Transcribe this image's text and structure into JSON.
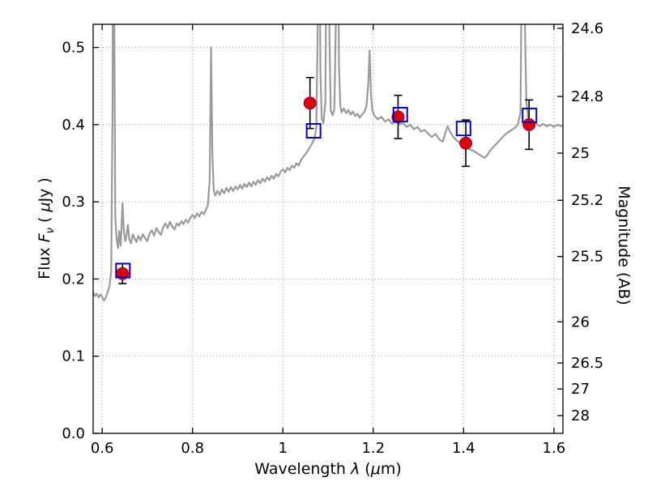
{
  "figure": {
    "background": "#ffffff",
    "frame_color": "#000000",
    "grid_color": "#9a9a9a"
  },
  "chart_data": {
    "type": "line",
    "title": "",
    "xlabel": "Wavelength λ (μm)",
    "ylabel_left": "Flux Fν ( μJy )",
    "ylabel_right": "Magnitude (AB)",
    "xlabel_parts": {
      "text1": "Wavelength  ",
      "sym1": "λ",
      "text2": " (",
      "sym2": "μ",
      "text3": "m)"
    },
    "ylabel_left_parts": {
      "text1": "Flux  ",
      "sym1": "F",
      "sub1": "ν",
      "text2": " ( ",
      "sym2": "μ",
      "text3": "Jy )"
    },
    "grid": true,
    "legend": null,
    "xlim": [
      0.58,
      1.62
    ],
    "ylim": [
      0.0,
      0.53
    ],
    "x_ticks": [
      0.6,
      0.8,
      1.0,
      1.2,
      1.4,
      1.6
    ],
    "x_tick_labels": [
      "0.6",
      "0.8",
      "1",
      "1.2",
      "1.4",
      "1.6"
    ],
    "y_ticks_left": [
      0.0,
      0.1,
      0.2,
      0.3,
      0.4,
      0.5
    ],
    "y_tick_labels_left": [
      "0.0",
      "0.1",
      "0.2",
      "0.3",
      "0.4",
      "0.5"
    ],
    "y_ticks_right": [
      {
        "label": "24.6",
        "flux": 0.5248
      },
      {
        "label": "24.8",
        "flux": 0.4365
      },
      {
        "label": "25",
        "flux": 0.3631
      },
      {
        "label": "25.2",
        "flux": 0.302
      },
      {
        "label": "25.5",
        "flux": 0.2291
      },
      {
        "label": "26",
        "flux": 0.1445
      },
      {
        "label": "26.5",
        "flux": 0.0912
      },
      {
        "label": "27",
        "flux": 0.0575
      },
      {
        "label": "28",
        "flux": 0.0229
      }
    ],
    "series": [
      {
        "name": "sed-spectrum",
        "type": "line",
        "color": "#9a9a9a",
        "points": [
          [
            0.58,
            0.183
          ],
          [
            0.584,
            0.178
          ],
          [
            0.588,
            0.181
          ],
          [
            0.592,
            0.176
          ],
          [
            0.596,
            0.18
          ],
          [
            0.6,
            0.177
          ],
          [
            0.604,
            0.172
          ],
          [
            0.608,
            0.176
          ],
          [
            0.612,
            0.183
          ],
          [
            0.616,
            0.19
          ],
          [
            0.62,
            0.21
          ],
          [
            0.623,
            0.43
          ],
          [
            0.625,
            0.9
          ],
          [
            0.627,
            0.52
          ],
          [
            0.629,
            0.28
          ],
          [
            0.632,
            0.252
          ],
          [
            0.635,
            0.24
          ],
          [
            0.638,
            0.262
          ],
          [
            0.641,
            0.243
          ],
          [
            0.645,
            0.298
          ],
          [
            0.648,
            0.262
          ],
          [
            0.651,
            0.249
          ],
          [
            0.654,
            0.257
          ],
          [
            0.657,
            0.27
          ],
          [
            0.66,
            0.252
          ],
          [
            0.664,
            0.246
          ],
          [
            0.668,
            0.258
          ],
          [
            0.672,
            0.252
          ],
          [
            0.676,
            0.248
          ],
          [
            0.68,
            0.256
          ],
          [
            0.685,
            0.25
          ],
          [
            0.69,
            0.258
          ],
          [
            0.695,
            0.253
          ],
          [
            0.7,
            0.249
          ],
          [
            0.705,
            0.259
          ],
          [
            0.71,
            0.263
          ],
          [
            0.715,
            0.256
          ],
          [
            0.72,
            0.266
          ],
          [
            0.725,
            0.261
          ],
          [
            0.73,
            0.257
          ],
          [
            0.735,
            0.267
          ],
          [
            0.74,
            0.272
          ],
          [
            0.745,
            0.266
          ],
          [
            0.75,
            0.274
          ],
          [
            0.755,
            0.268
          ],
          [
            0.76,
            0.264
          ],
          [
            0.765,
            0.272
          ],
          [
            0.77,
            0.269
          ],
          [
            0.775,
            0.275
          ],
          [
            0.78,
            0.271
          ],
          [
            0.785,
            0.277
          ],
          [
            0.79,
            0.273
          ],
          [
            0.795,
            0.279
          ],
          [
            0.8,
            0.283
          ],
          [
            0.805,
            0.279
          ],
          [
            0.81,
            0.285
          ],
          [
            0.815,
            0.281
          ],
          [
            0.82,
            0.287
          ],
          [
            0.825,
            0.284
          ],
          [
            0.83,
            0.29
          ],
          [
            0.834,
            0.296
          ],
          [
            0.838,
            0.33
          ],
          [
            0.841,
            0.5
          ],
          [
            0.844,
            0.36
          ],
          [
            0.847,
            0.315
          ],
          [
            0.85,
            0.308
          ],
          [
            0.855,
            0.314
          ],
          [
            0.86,
            0.309
          ],
          [
            0.865,
            0.316
          ],
          [
            0.87,
            0.311
          ],
          [
            0.875,
            0.318
          ],
          [
            0.88,
            0.313
          ],
          [
            0.885,
            0.319
          ],
          [
            0.89,
            0.314
          ],
          [
            0.895,
            0.32
          ],
          [
            0.9,
            0.316
          ],
          [
            0.905,
            0.322
          ],
          [
            0.91,
            0.317
          ],
          [
            0.915,
            0.323
          ],
          [
            0.92,
            0.319
          ],
          [
            0.925,
            0.325
          ],
          [
            0.93,
            0.32
          ],
          [
            0.935,
            0.326
          ],
          [
            0.94,
            0.322
          ],
          [
            0.945,
            0.328
          ],
          [
            0.95,
            0.324
          ],
          [
            0.955,
            0.33
          ],
          [
            0.96,
            0.326
          ],
          [
            0.965,
            0.332
          ],
          [
            0.97,
            0.328
          ],
          [
            0.975,
            0.334
          ],
          [
            0.98,
            0.33
          ],
          [
            0.985,
            0.336
          ],
          [
            0.99,
            0.333
          ],
          [
            0.995,
            0.339
          ],
          [
            1.0,
            0.342
          ],
          [
            1.005,
            0.338
          ],
          [
            1.01,
            0.344
          ],
          [
            1.015,
            0.341
          ],
          [
            1.02,
            0.347
          ],
          [
            1.025,
            0.344
          ],
          [
            1.03,
            0.35
          ],
          [
            1.035,
            0.347
          ],
          [
            1.04,
            0.354
          ],
          [
            1.045,
            0.358
          ],
          [
            1.05,
            0.362
          ],
          [
            1.055,
            0.366
          ],
          [
            1.06,
            0.371
          ],
          [
            1.065,
            0.376
          ],
          [
            1.07,
            0.382
          ],
          [
            1.074,
            0.396
          ],
          [
            1.077,
            0.52
          ],
          [
            1.08,
            0.9
          ],
          [
            1.083,
            0.47
          ],
          [
            1.086,
            0.408
          ],
          [
            1.09,
            0.402
          ],
          [
            1.094,
            0.43
          ],
          [
            1.097,
            0.7
          ],
          [
            1.1,
            0.92
          ],
          [
            1.103,
            0.52
          ],
          [
            1.106,
            0.418
          ],
          [
            1.11,
            0.412
          ],
          [
            1.114,
            0.42
          ],
          [
            1.118,
            0.56
          ],
          [
            1.121,
            0.9
          ],
          [
            1.124,
            0.48
          ],
          [
            1.127,
            0.424
          ],
          [
            1.13,
            0.416
          ],
          [
            1.135,
            0.421
          ],
          [
            1.14,
            0.415
          ],
          [
            1.145,
            0.419
          ],
          [
            1.15,
            0.413
          ],
          [
            1.155,
            0.417
          ],
          [
            1.16,
            0.411
          ],
          [
            1.165,
            0.414
          ],
          [
            1.17,
            0.409
          ],
          [
            1.175,
            0.413
          ],
          [
            1.18,
            0.416
          ],
          [
            1.185,
            0.424
          ],
          [
            1.189,
            0.452
          ],
          [
            1.192,
            0.496
          ],
          [
            1.195,
            0.44
          ],
          [
            1.198,
            0.419
          ],
          [
            1.202,
            0.412
          ],
          [
            1.21,
            0.407
          ],
          [
            1.218,
            0.41
          ],
          [
            1.226,
            0.404
          ],
          [
            1.234,
            0.407
          ],
          [
            1.242,
            0.401
          ],
          [
            1.25,
            0.404
          ],
          [
            1.258,
            0.4
          ],
          [
            1.266,
            0.402
          ],
          [
            1.274,
            0.397
          ],
          [
            1.282,
            0.4
          ],
          [
            1.29,
            0.394
          ],
          [
            1.298,
            0.397
          ],
          [
            1.306,
            0.391
          ],
          [
            1.314,
            0.393
          ],
          [
            1.322,
            0.388
          ],
          [
            1.33,
            0.384
          ],
          [
            1.338,
            0.388
          ],
          [
            1.346,
            0.381
          ],
          [
            1.354,
            0.378
          ],
          [
            1.36,
            0.39
          ],
          [
            1.365,
            0.398
          ],
          [
            1.37,
            0.391
          ],
          [
            1.376,
            0.385
          ],
          [
            1.382,
            0.381
          ],
          [
            1.39,
            0.377
          ],
          [
            1.398,
            0.373
          ],
          [
            1.406,
            0.37
          ],
          [
            1.414,
            0.368
          ],
          [
            1.422,
            0.366
          ],
          [
            1.43,
            0.363
          ],
          [
            1.438,
            0.36
          ],
          [
            1.446,
            0.357
          ],
          [
            1.452,
            0.36
          ],
          [
            1.458,
            0.366
          ],
          [
            1.466,
            0.371
          ],
          [
            1.474,
            0.376
          ],
          [
            1.482,
            0.381
          ],
          [
            1.49,
            0.386
          ],
          [
            1.498,
            0.39
          ],
          [
            1.506,
            0.393
          ],
          [
            1.514,
            0.396
          ],
          [
            1.52,
            0.4
          ],
          [
            1.526,
            0.415
          ],
          [
            1.53,
            0.7
          ],
          [
            1.533,
            0.95
          ],
          [
            1.536,
            0.52
          ],
          [
            1.539,
            0.43
          ],
          [
            1.543,
            0.408
          ],
          [
            1.548,
            0.402
          ],
          [
            1.554,
            0.399
          ],
          [
            1.56,
            0.402
          ],
          [
            1.568,
            0.398
          ],
          [
            1.576,
            0.401
          ],
          [
            1.584,
            0.398
          ],
          [
            1.592,
            0.4
          ],
          [
            1.6,
            0.397
          ],
          [
            1.608,
            0.4
          ],
          [
            1.616,
            0.398
          ],
          [
            1.62,
            0.399
          ]
        ]
      },
      {
        "name": "observed-photometry",
        "type": "scatter",
        "marker": "filled-circle",
        "color": "#dd0000",
        "edge": "#8b0a50",
        "x": [
          0.645,
          1.06,
          1.255,
          1.405,
          1.545
        ],
        "y": [
          0.207,
          0.428,
          0.41,
          0.376,
          0.4
        ],
        "yerr": [
          0.013,
          0.033,
          0.028,
          0.03,
          0.032
        ]
      },
      {
        "name": "model-photometry",
        "type": "scatter",
        "marker": "open-square",
        "color": "#0000cc",
        "x": [
          0.646,
          1.068,
          1.26,
          1.4,
          1.546
        ],
        "y": [
          0.211,
          0.392,
          0.413,
          0.395,
          0.412
        ]
      }
    ]
  }
}
